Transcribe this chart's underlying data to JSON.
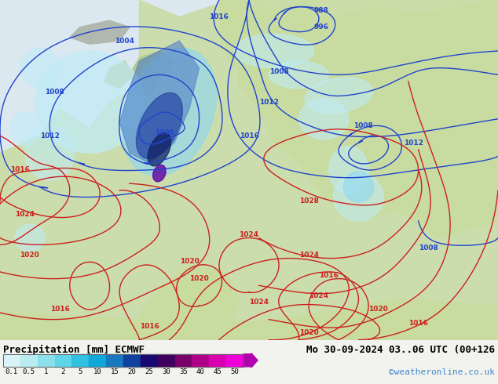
{
  "title_left": "Precipitation [mm] ECMWF",
  "title_right": "Mo 30-09-2024 03..06 UTC (00+126",
  "credit": "©weatheronline.co.uk",
  "colorbar_labels": [
    "0.1",
    "0.5",
    "1",
    "2",
    "5",
    "10",
    "15",
    "20",
    "25",
    "30",
    "35",
    "40",
    "45",
    "50"
  ],
  "colorbar_colors": [
    "#d8f4f8",
    "#b8ecf0",
    "#8ce0ec",
    "#60d4e8",
    "#30c0e0",
    "#10a8d8",
    "#1878c0",
    "#1040a0",
    "#180870",
    "#400060",
    "#780068",
    "#b00088",
    "#d800b0",
    "#f000d8"
  ],
  "bg_color": "#f2f2ee",
  "ocean_color": "#dce8f0",
  "land_color": "#c8dca0",
  "label_fontsize": 9,
  "credit_color": "#4488cc",
  "figure_width": 6.34,
  "figure_height": 4.9,
  "blue_isobar_color": "#2244cc",
  "red_isobar_color": "#cc2020",
  "gray_coast_color": "#a0a0a0",
  "precip_light1": "#c0ecf8",
  "precip_light2": "#90d8f0",
  "precip_mid1": "#5080c8",
  "precip_mid2": "#2040a0",
  "precip_dark": "#102060",
  "precip_purple": "#6000a0"
}
